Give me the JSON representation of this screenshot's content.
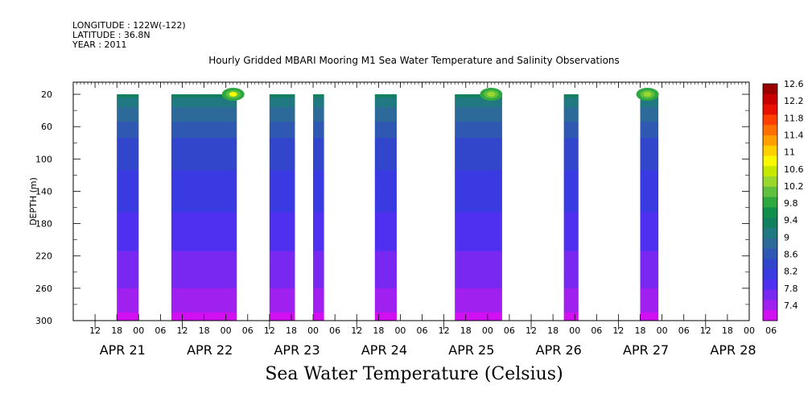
{
  "header": {
    "longitude": "LONGITUDE : 122W(-122)",
    "latitude": "LATITUDE : 36.8N",
    "year": "YEAR : 2011",
    "title": "Hourly Gridded MBARI Mooring M1 Sea Water Temperature and Salinity Observations"
  },
  "chart_data": {
    "type": "heatmap",
    "title": "Hourly Gridded MBARI Mooring M1 Sea Water Temperature and Salinity Observations",
    "xlabel": "Sea Water Temperature (Celsius)",
    "ylabel": "DEPTH (m)",
    "x_range_hours": [
      0,
      186
    ],
    "x_origin_label": "APR 21 06:00",
    "y_range": [
      300,
      5
    ],
    "y_ticks": [
      20,
      60,
      100,
      140,
      180,
      220,
      260,
      300
    ],
    "x_hour_ticks": [
      "12",
      "18",
      "00",
      "06",
      "12",
      "18",
      "00",
      "06",
      "12",
      "18",
      "00",
      "06",
      "12",
      "18",
      "00",
      "06",
      "12",
      "18",
      "00",
      "06",
      "12",
      "18",
      "00",
      "06",
      "12",
      "18",
      "00",
      "06",
      "12",
      "18",
      "00",
      "06"
    ],
    "x_date_labels": [
      "APR 21",
      "APR 22",
      "APR 23",
      "APR 24",
      "APR 25",
      "APR 26",
      "APR 27",
      "APR 28"
    ],
    "colorbar_levels": [
      "12.6",
      "12.2",
      "11.8",
      "11.4",
      "11",
      "10.6",
      "10.2",
      "9.8",
      "9.4",
      "9",
      "8.6",
      "8.2",
      "7.8",
      "7.4"
    ],
    "colorbar_colors": [
      "#9a0000",
      "#c80000",
      "#e81000",
      "#ff4000",
      "#ff7000",
      "#ffa000",
      "#ffd000",
      "#f8f800",
      "#c8e800",
      "#9ad830",
      "#60c040",
      "#30a840",
      "#10904a",
      "#108060",
      "#207880",
      "#2d6a9a",
      "#2f58b2",
      "#3246cc",
      "#3a3ae2",
      "#5030f0",
      "#7828f0",
      "#a020f0",
      "#d010f0"
    ],
    "data_blocks": [
      {
        "start_hours": 12,
        "end_hours": 18
      },
      {
        "start_hours": 27,
        "end_hours": 45
      },
      {
        "start_hours": 54,
        "end_hours": 61
      },
      {
        "start_hours": 66,
        "end_hours": 69
      },
      {
        "start_hours": 83,
        "end_hours": 89
      },
      {
        "start_hours": 105,
        "end_hours": 118
      },
      {
        "start_hours": 135,
        "end_hours": 139
      },
      {
        "start_hours": 156,
        "end_hours": 161
      }
    ],
    "depth_profile": [
      {
        "depth": 20,
        "value": 9.5
      },
      {
        "depth": 40,
        "value": 9.15
      },
      {
        "depth": 60,
        "value": 8.9
      },
      {
        "depth": 80,
        "value": 8.7
      },
      {
        "depth": 100,
        "value": 8.6
      },
      {
        "depth": 140,
        "value": 8.4
      },
      {
        "depth": 180,
        "value": 8.25
      },
      {
        "depth": 220,
        "value": 8.05
      },
      {
        "depth": 260,
        "value": 7.85
      },
      {
        "depth": 300,
        "value": 7.55
      }
    ],
    "surface_warm_spots": [
      {
        "hour": 44,
        "depth": 20,
        "value": 11.0
      },
      {
        "hour": 115,
        "depth": 20,
        "value": 10.5
      },
      {
        "hour": 158,
        "depth": 20,
        "value": 10.4
      }
    ]
  }
}
